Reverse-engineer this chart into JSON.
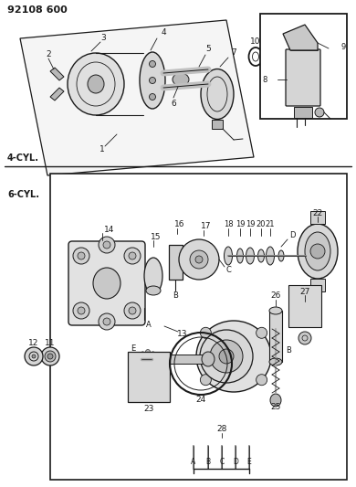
{
  "title": "92108 600",
  "bg_color": "#ffffff",
  "lc": "#1a1a1a",
  "label_4cyl": "4-CYL.",
  "label_6cyl": "6-CYL.",
  "fig_width": 3.9,
  "fig_height": 5.33,
  "dpi": 100
}
